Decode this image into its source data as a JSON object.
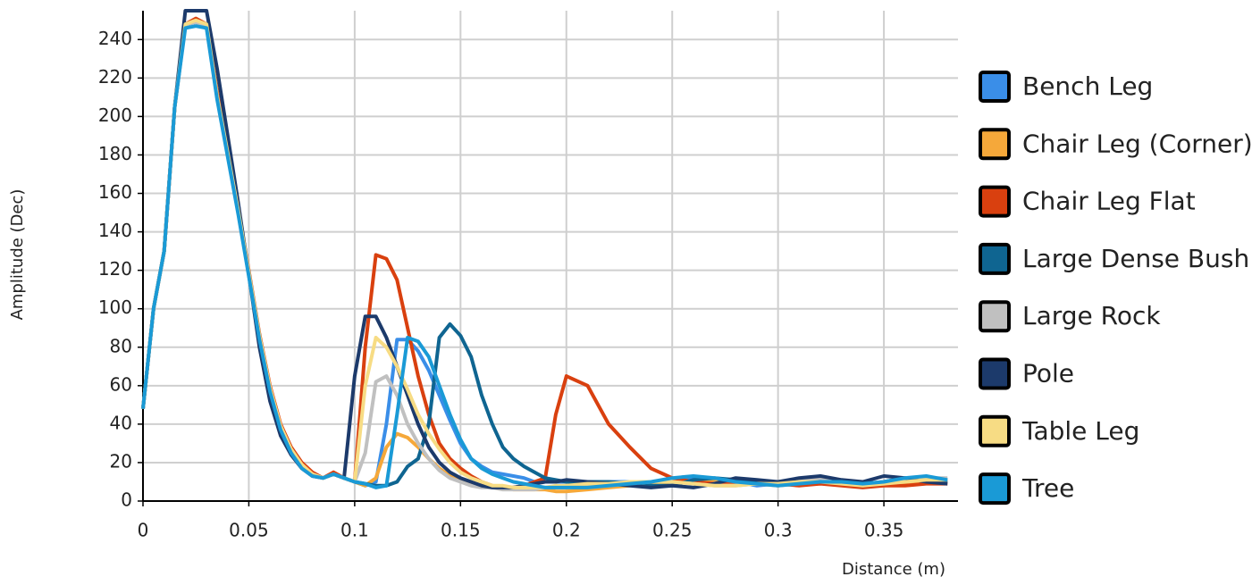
{
  "chart_data": {
    "type": "line",
    "x_label": "Distance (m)",
    "y_label": "Amplitude (Dec)",
    "x": [
      0,
      0.005,
      0.01,
      0.015,
      0.02,
      0.025,
      0.03,
      0.035,
      0.04,
      0.045,
      0.05,
      0.055,
      0.06,
      0.065,
      0.07,
      0.075,
      0.08,
      0.085,
      0.09,
      0.095,
      0.1,
      0.105,
      0.11,
      0.115,
      0.12,
      0.125,
      0.13,
      0.135,
      0.14,
      0.145,
      0.15,
      0.155,
      0.16,
      0.165,
      0.17,
      0.175,
      0.18,
      0.185,
      0.19,
      0.195,
      0.2,
      0.21,
      0.22,
      0.23,
      0.24,
      0.25,
      0.26,
      0.27,
      0.28,
      0.29,
      0.3,
      0.31,
      0.32,
      0.33,
      0.34,
      0.35,
      0.36,
      0.37,
      0.38
    ],
    "xlim": [
      0,
      0.385
    ],
    "ylim": [
      0,
      255
    ],
    "xticks": [
      0,
      0.05,
      0.1,
      0.15,
      0.2,
      0.25,
      0.3,
      0.35
    ],
    "yticks": [
      0,
      20,
      40,
      60,
      80,
      100,
      120,
      140,
      160,
      180,
      200,
      220,
      240
    ],
    "grid": true,
    "legend": "right",
    "series": [
      {
        "name": "Bench Leg",
        "color": "#3a8ee8",
        "values": [
          48,
          100,
          130,
          205,
          248,
          249,
          247,
          210,
          180,
          150,
          118,
          85,
          58,
          38,
          26,
          18,
          14,
          12,
          14,
          12,
          10,
          8,
          10,
          40,
          84,
          84,
          78,
          68,
          55,
          42,
          30,
          22,
          18,
          15,
          14,
          13,
          12,
          10,
          10,
          10,
          10,
          10,
          10,
          10,
          9,
          10,
          12,
          10,
          10,
          8,
          9,
          10,
          10,
          9,
          8,
          9,
          10,
          10,
          11
        ]
      },
      {
        "name": "Chair Leg (Corner)",
        "color": "#f5a83a",
        "values": [
          48,
          100,
          130,
          205,
          248,
          250,
          248,
          212,
          181,
          151,
          119,
          86,
          59,
          39,
          27,
          19,
          14,
          12,
          14,
          12,
          10,
          8,
          12,
          28,
          35,
          33,
          28,
          22,
          17,
          13,
          11,
          9,
          8,
          7,
          7,
          6,
          6,
          6,
          6,
          5,
          5,
          6,
          7,
          8,
          9,
          10,
          10,
          11,
          10,
          9,
          8,
          9,
          9,
          10,
          9,
          8,
          9,
          10,
          10
        ]
      },
      {
        "name": "Chair Leg Flat",
        "color": "#d9400f",
        "values": [
          48,
          100,
          130,
          205,
          248,
          251,
          248,
          213,
          182,
          152,
          120,
          87,
          60,
          40,
          28,
          20,
          15,
          12,
          15,
          12,
          10,
          80,
          128,
          126,
          115,
          90,
          65,
          45,
          30,
          22,
          17,
          13,
          10,
          8,
          7,
          7,
          8,
          10,
          12,
          45,
          65,
          60,
          40,
          28,
          17,
          12,
          10,
          9,
          9,
          10,
          9,
          8,
          9,
          8,
          7,
          8,
          8,
          9,
          9
        ]
      },
      {
        "name": "Large Dense Bush",
        "color": "#0f6591",
        "values": [
          48,
          100,
          130,
          205,
          248,
          249,
          247,
          211,
          181,
          151,
          119,
          86,
          58,
          38,
          26,
          18,
          14,
          12,
          14,
          12,
          10,
          9,
          8,
          8,
          10,
          18,
          22,
          40,
          85,
          92,
          86,
          75,
          55,
          40,
          28,
          22,
          18,
          15,
          12,
          11,
          10,
          10,
          10,
          9,
          8,
          8,
          11,
          12,
          11,
          10,
          9,
          11,
          12,
          10,
          9,
          10,
          12,
          11,
          10
        ]
      },
      {
        "name": "Large Rock",
        "color": "#c0c0c0",
        "values": [
          48,
          100,
          130,
          205,
          248,
          249,
          247,
          210,
          180,
          150,
          118,
          85,
          58,
          38,
          26,
          18,
          14,
          12,
          14,
          12,
          10,
          25,
          62,
          65,
          55,
          40,
          30,
          22,
          16,
          12,
          10,
          8,
          7,
          7,
          6,
          6,
          6,
          6,
          7,
          7,
          7,
          8,
          8,
          9,
          10,
          10,
          9,
          8,
          8,
          9,
          10,
          11,
          12,
          10,
          9,
          10,
          11,
          12,
          12
        ]
      },
      {
        "name": "Pole",
        "color": "#1c3a6b",
        "values": [
          48,
          100,
          130,
          205,
          255,
          255,
          255,
          225,
          190,
          155,
          118,
          80,
          52,
          34,
          24,
          17,
          13,
          12,
          14,
          12,
          65,
          96,
          96,
          85,
          70,
          55,
          40,
          28,
          20,
          15,
          12,
          10,
          8,
          7,
          7,
          7,
          8,
          9,
          10,
          10,
          11,
          10,
          9,
          8,
          7,
          8,
          7,
          9,
          12,
          11,
          10,
          12,
          13,
          11,
          10,
          13,
          12,
          10,
          9
        ]
      },
      {
        "name": "Table Leg",
        "color": "#f7dc84",
        "values": [
          48,
          100,
          130,
          205,
          248,
          250,
          248,
          211,
          181,
          151,
          119,
          86,
          59,
          39,
          27,
          19,
          14,
          12,
          14,
          12,
          10,
          60,
          85,
          80,
          70,
          58,
          45,
          35,
          27,
          20,
          15,
          12,
          10,
          8,
          8,
          7,
          7,
          7,
          7,
          8,
          8,
          9,
          9,
          10,
          10,
          10,
          9,
          8,
          8,
          9,
          9,
          10,
          10,
          9,
          8,
          9,
          10,
          11,
          11
        ]
      },
      {
        "name": "Tree",
        "color": "#1a9ad6",
        "values": [
          48,
          100,
          130,
          205,
          246,
          247,
          246,
          209,
          179,
          149,
          117,
          84,
          57,
          37,
          25,
          17,
          13,
          12,
          14,
          12,
          10,
          9,
          7,
          8,
          45,
          85,
          83,
          75,
          60,
          45,
          32,
          22,
          17,
          14,
          12,
          10,
          9,
          8,
          7,
          7,
          7,
          7,
          8,
          9,
          10,
          12,
          13,
          12,
          10,
          9,
          8,
          9,
          10,
          10,
          9,
          10,
          12,
          13,
          11
        ]
      }
    ]
  }
}
